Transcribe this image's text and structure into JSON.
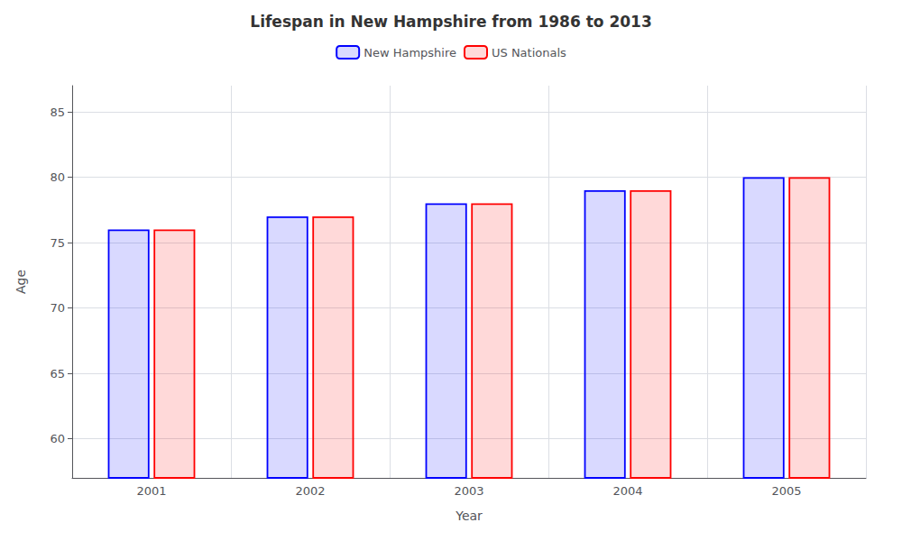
{
  "chart_data": {
    "type": "bar",
    "title": "Lifespan in New Hampshire from 1986 to 2013",
    "xlabel": "Year",
    "ylabel": "Age",
    "categories": [
      "2001",
      "2002",
      "2003",
      "2004",
      "2005"
    ],
    "series": [
      {
        "name": "New Hampshire",
        "color": "#0000ff",
        "values": [
          76,
          77,
          78,
          79,
          80
        ]
      },
      {
        "name": "US Nationals",
        "color": "#ff0000",
        "values": [
          76,
          77,
          78,
          79,
          80
        ]
      }
    ],
    "ylim": [
      57,
      87
    ],
    "yticks": [
      60,
      65,
      70,
      75,
      80,
      85
    ],
    "grid": true,
    "legend": "top"
  }
}
